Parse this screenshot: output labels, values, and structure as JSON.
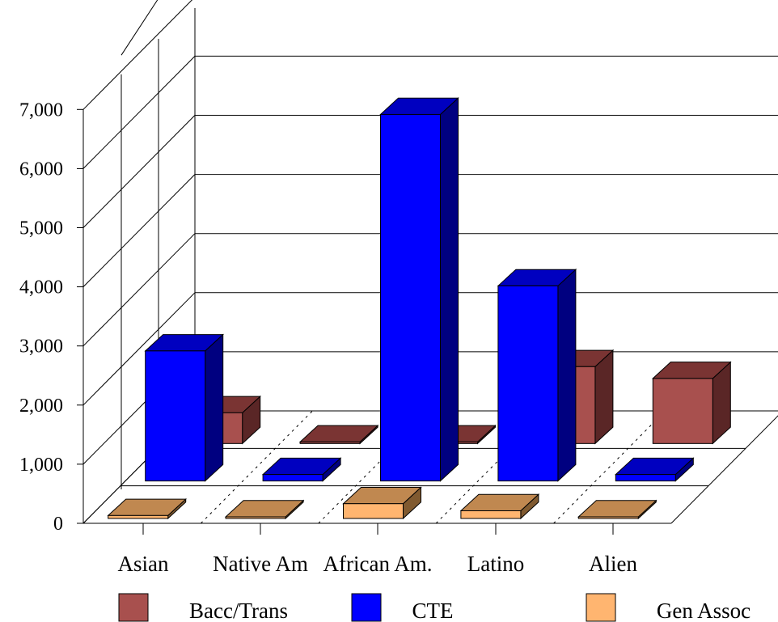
{
  "chart_data": {
    "type": "bar",
    "title": "",
    "xlabel": "",
    "ylabel": "",
    "ylim": [
      0,
      7000
    ],
    "yticks": [
      0,
      1000,
      2000,
      3000,
      4000,
      5000,
      6000,
      7000
    ],
    "ytick_labels": [
      "0",
      "1,000",
      "2,000",
      "3,000",
      "4,000",
      "5,000",
      "6,000",
      "7,000"
    ],
    "categories": [
      "Asian",
      "Native Am",
      "African Am.",
      "Latino",
      "Alien"
    ],
    "series": [
      {
        "name": "Bacc/Trans",
        "values": [
          520,
          20,
          20,
          1300,
          1100
        ],
        "color": "#A8504E",
        "top_color": "#7A3433",
        "side_color": "#5A2626"
      },
      {
        "name": "CTE",
        "values": [
          2200,
          110,
          6200,
          3300,
          110
        ],
        "color": "#0000FF",
        "top_color": "#0000C0",
        "side_color": "#000080"
      },
      {
        "name": "Gen Assoc",
        "values": [
          50,
          10,
          250,
          130,
          10
        ],
        "color": "#FFB570",
        "top_color": "#C08850",
        "side_color": "#805A30"
      }
    ],
    "grid": true,
    "legend_position": "bottom",
    "perspective": "3d"
  }
}
